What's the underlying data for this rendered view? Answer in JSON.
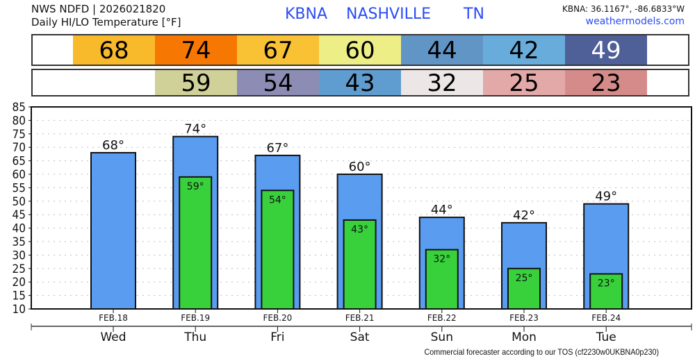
{
  "header": {
    "line1": "NWS NDFD | 2026021820",
    "line2": "Daily HI/LO Temperature [°F]",
    "station_id": "KBNA",
    "city": "NASHVILLE",
    "state": "TN",
    "coords": "KBNA: 36.1167°, -86.6833°W",
    "site": "weathermodels.com"
  },
  "hi_strip": [
    {
      "value": "68",
      "color": "#f8b92a",
      "text_color": "#000"
    },
    {
      "value": "74",
      "color": "#f77703",
      "text_color": "#000"
    },
    {
      "value": "67",
      "color": "#f9c235",
      "text_color": "#000"
    },
    {
      "value": "60",
      "color": "#eeee86",
      "text_color": "#000"
    },
    {
      "value": "44",
      "color": "#6195c6",
      "text_color": "#000"
    },
    {
      "value": "42",
      "color": "#68acdc",
      "text_color": "#000"
    },
    {
      "value": "49",
      "color": "#4f5f98",
      "text_color": "#fff"
    }
  ],
  "lo_strip": [
    {
      "value": "59",
      "color": "#d0d099"
    },
    {
      "value": "54",
      "color": "#8c8cb4"
    },
    {
      "value": "43",
      "color": "#5f9dd0"
    },
    {
      "value": "32",
      "color": "#ece6e6"
    },
    {
      "value": "25",
      "color": "#e3a9a9"
    },
    {
      "value": "23",
      "color": "#d68b8b"
    }
  ],
  "chart_data": {
    "type": "bar",
    "categories": [
      "FEB.18",
      "FEB.19",
      "FEB.20",
      "FEB.21",
      "FEB.22",
      "FEB.23",
      "FEB.24"
    ],
    "days": [
      "Wed",
      "Thu",
      "Fri",
      "Sat",
      "Sun",
      "Mon",
      "Tue"
    ],
    "series": [
      {
        "name": "HI",
        "values": [
          68,
          74,
          67,
          60,
          44,
          42,
          49
        ],
        "color": "#5a9cf0"
      },
      {
        "name": "LO",
        "values": [
          null,
          59,
          54,
          43,
          32,
          25,
          23
        ],
        "color": "#38d13c"
      }
    ],
    "ylim": [
      10,
      85
    ],
    "yticks": [
      10,
      15,
      20,
      25,
      30,
      35,
      40,
      45,
      50,
      55,
      60,
      65,
      70,
      75,
      80,
      85
    ],
    "grid": true,
    "degree_suffix": "°"
  },
  "footer": "Commercial forecaster according to our TOS (cf2230w0UKBNA0p230)"
}
